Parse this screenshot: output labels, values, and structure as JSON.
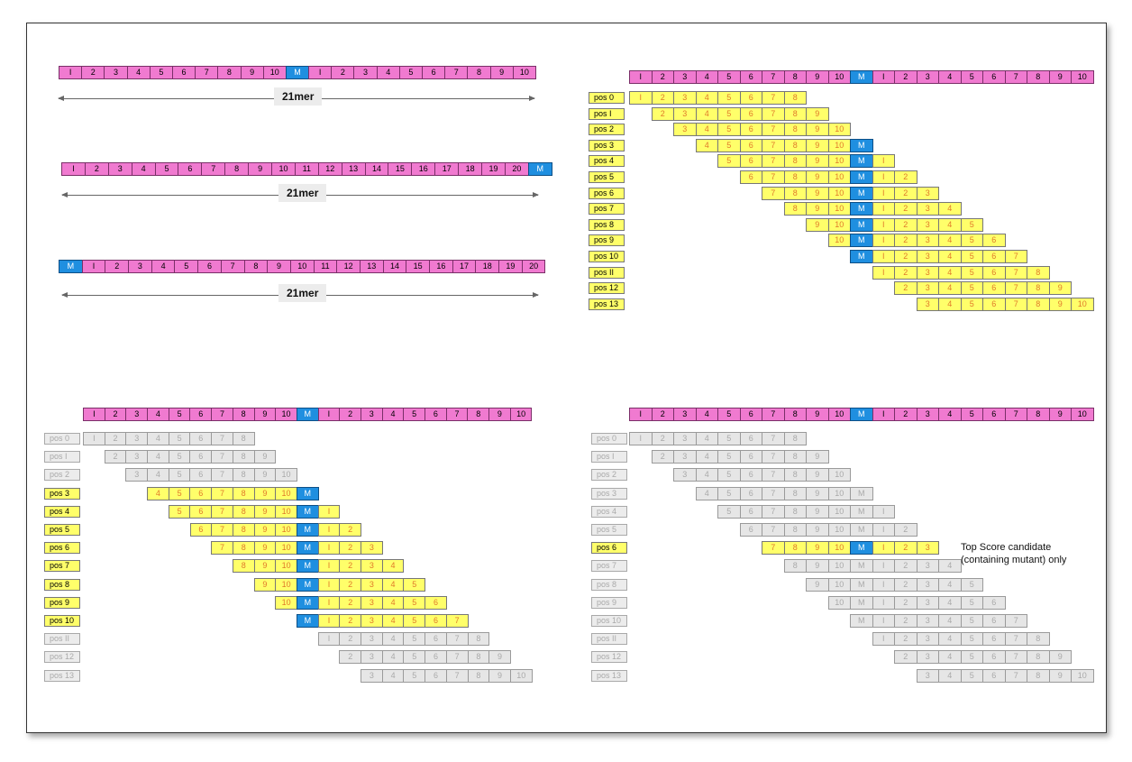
{
  "left_diagrams": [
    {
      "cells": [
        "I",
        "2",
        "3",
        "4",
        "5",
        "6",
        "7",
        "8",
        "9",
        "10",
        "M",
        "I",
        "2",
        "3",
        "4",
        "5",
        "6",
        "7",
        "8",
        "9",
        "10"
      ],
      "label": "21mer"
    },
    {
      "cells": [
        "I",
        "2",
        "3",
        "4",
        "5",
        "6",
        "7",
        "8",
        "9",
        "10",
        "11",
        "12",
        "13",
        "14",
        "15",
        "16",
        "17",
        "18",
        "19",
        "20",
        "M"
      ],
      "label": "21mer"
    },
    {
      "cells": [
        "M",
        "I",
        "2",
        "3",
        "4",
        "5",
        "6",
        "7",
        "8",
        "9",
        "10",
        "11",
        "12",
        "13",
        "14",
        "15",
        "16",
        "17",
        "18",
        "19",
        "20"
      ],
      "label": "21mer"
    }
  ],
  "reference_sequence": [
    "I",
    "2",
    "3",
    "4",
    "5",
    "6",
    "7",
    "8",
    "9",
    "10",
    "M",
    "I",
    "2",
    "3",
    "4",
    "5",
    "6",
    "7",
    "8",
    "9",
    "10"
  ],
  "windows": [
    {
      "label": "pos 0",
      "cells": [
        "I",
        "2",
        "3",
        "4",
        "5",
        "6",
        "7",
        "8"
      ]
    },
    {
      "label": "pos I",
      "cells": [
        "2",
        "3",
        "4",
        "5",
        "6",
        "7",
        "8",
        "9"
      ]
    },
    {
      "label": "pos 2",
      "cells": [
        "3",
        "4",
        "5",
        "6",
        "7",
        "8",
        "9",
        "10"
      ]
    },
    {
      "label": "pos 3",
      "cells": [
        "4",
        "5",
        "6",
        "7",
        "8",
        "9",
        "10",
        "M"
      ]
    },
    {
      "label": "pos 4",
      "cells": [
        "5",
        "6",
        "7",
        "8",
        "9",
        "10",
        "M",
        "I"
      ]
    },
    {
      "label": "pos 5",
      "cells": [
        "6",
        "7",
        "8",
        "9",
        "10",
        "M",
        "I",
        "2"
      ]
    },
    {
      "label": "pos 6",
      "cells": [
        "7",
        "8",
        "9",
        "10",
        "M",
        "I",
        "2",
        "3"
      ]
    },
    {
      "label": "pos 7",
      "cells": [
        "8",
        "9",
        "10",
        "M",
        "I",
        "2",
        "3",
        "4"
      ]
    },
    {
      "label": "pos 8",
      "cells": [
        "9",
        "10",
        "M",
        "I",
        "2",
        "3",
        "4",
        "5"
      ]
    },
    {
      "label": "pos 9",
      "cells": [
        "10",
        "M",
        "I",
        "2",
        "3",
        "4",
        "5",
        "6"
      ]
    },
    {
      "label": "pos 10",
      "cells": [
        "M",
        "I",
        "2",
        "3",
        "4",
        "5",
        "6",
        "7"
      ]
    },
    {
      "label": "pos II",
      "cells": [
        "I",
        "2",
        "3",
        "4",
        "5",
        "6",
        "7",
        "8"
      ]
    },
    {
      "label": "pos 12",
      "cells": [
        "2",
        "3",
        "4",
        "5",
        "6",
        "7",
        "8",
        "9"
      ]
    },
    {
      "label": "pos 13",
      "cells": [
        "3",
        "4",
        "5",
        "6",
        "7",
        "8",
        "9",
        "10"
      ]
    }
  ],
  "panels": {
    "top_right": {
      "highlighted": [
        0,
        1,
        2,
        3,
        4,
        5,
        6,
        7,
        8,
        9,
        10,
        11,
        12,
        13
      ]
    },
    "bottom_left": {
      "highlighted": [
        3,
        4,
        5,
        6,
        7,
        8,
        9,
        10
      ]
    },
    "bottom_right": {
      "highlighted": [
        6
      ]
    }
  },
  "note": "Top Score candidate (containing mutant) only",
  "colors": {
    "reference": "#f07ad0",
    "mutant": "#1f8fe0",
    "window": "#ffff6a",
    "window_text": "#e07a2a",
    "inactive": "#e6e6e6"
  }
}
